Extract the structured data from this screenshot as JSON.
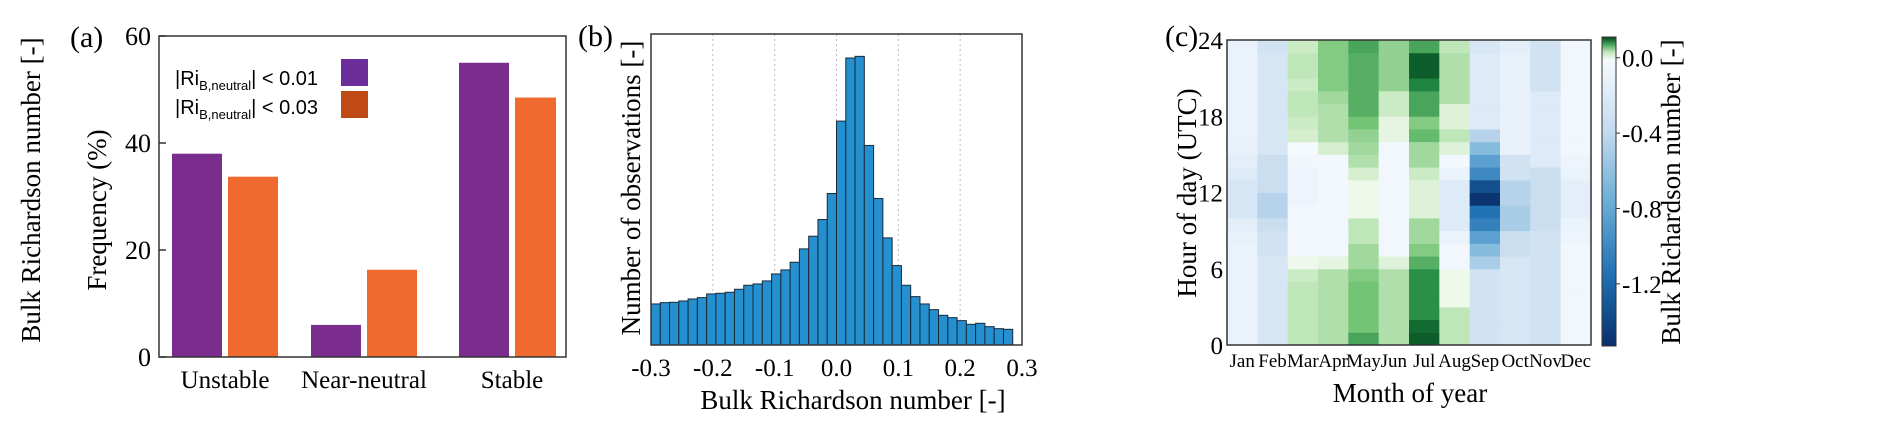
{
  "stray_label": "Bulk Richardson number [-]",
  "chart_data": [
    {
      "panel": "(a)",
      "type": "bar",
      "categories": [
        "Unstable",
        "Near-neutral",
        "Stable"
      ],
      "series": [
        {
          "name": "|Ri",
          "sub": "B,neutral",
          "suffix": "| < 0.01",
          "color": "#7b2d8e",
          "legend_color": "#6a2d9a",
          "values": [
            38,
            6,
            55
          ]
        },
        {
          "name": "|Ri",
          "sub": "B,neutral",
          "suffix": "| < 0.03",
          "color": "#f06a30",
          "legend_color": "#c04a15",
          "values": [
            33.7,
            16.3,
            48.5
          ]
        }
      ],
      "ylabel": "Frequency (%)",
      "xlabel": "",
      "ylim": [
        0,
        60
      ],
      "yticks": [
        "0",
        "20",
        "40",
        "60"
      ],
      "legend_position": "top-left"
    },
    {
      "panel": "(b)",
      "type": "bar",
      "subtype": "histogram",
      "bin_start": -0.3,
      "bin_width": 0.015,
      "values": [
        123,
        127,
        128,
        132,
        138,
        142,
        153,
        155,
        158,
        167,
        179,
        183,
        192,
        213,
        225,
        248,
        288,
        326,
        376,
        454,
        671,
        860,
        865,
        598,
        439,
        321,
        238,
        179,
        145,
        123,
        106,
        89,
        82,
        73,
        62,
        65,
        55,
        49,
        47
      ],
      "xlim": [
        -0.3,
        0.3
      ],
      "ylim": [
        0,
        932
      ],
      "xticks": [
        "-0.3",
        "-0.2",
        "-0.1",
        "0.0",
        "0.1",
        "0.2",
        "0.3"
      ],
      "xlabel": "Bulk Richardson number [-]",
      "ylabel": "Number of observations [-]",
      "color": "#2490d0",
      "grid": "vertical dotted"
    },
    {
      "panel": "(c)",
      "type": "heatmap",
      "xlabel": "Month of year",
      "ylabel": "Hour of day (UTC)",
      "months": [
        "Jan",
        "Feb",
        "Mar",
        "Apr",
        "May",
        "Jun",
        "Jul",
        "Aug",
        "Sep",
        "Oct",
        "Nov",
        "Dec"
      ],
      "yticks": [
        "0",
        "6",
        "12",
        "18",
        "24"
      ],
      "colorbar_label": "Bulk Richardson number [-]",
      "colorbar_ticks": [
        "0.0",
        "-0.4",
        "-0.8",
        "-1.2"
      ],
      "colorbar_range": [
        -1.53,
        0.11
      ],
      "values_by_month_hour": [
        [
          -0.1,
          -0.1,
          -0.1,
          -0.1,
          -0.1,
          -0.1,
          -0.1,
          -0.1,
          -0.12,
          -0.15,
          -0.25,
          -0.25,
          -0.25,
          -0.2,
          -0.15,
          -0.12,
          -0.1,
          -0.1,
          -0.1,
          -0.1,
          -0.1,
          -0.1,
          -0.1,
          -0.1
        ],
        [
          -0.25,
          -0.25,
          -0.25,
          -0.25,
          -0.25,
          -0.25,
          -0.25,
          -0.3,
          -0.3,
          -0.35,
          -0.45,
          -0.45,
          -0.35,
          -0.35,
          -0.35,
          -0.25,
          -0.25,
          -0.25,
          -0.25,
          -0.25,
          -0.25,
          -0.25,
          -0.25,
          -0.3
        ],
        [
          0.03,
          0.03,
          0.03,
          0.03,
          0.03,
          0.025,
          0.005,
          -0.05,
          -0.05,
          -0.05,
          -0.05,
          -0.08,
          -0.08,
          -0.08,
          -0.05,
          -0.02,
          0.02,
          0.025,
          0.03,
          0.03,
          0.025,
          0.03,
          0.03,
          0.025
        ],
        [
          0.035,
          0.035,
          0.035,
          0.035,
          0.035,
          0.035,
          0.01,
          -0.05,
          -0.05,
          -0.05,
          -0.05,
          -0.05,
          -0.05,
          -0.05,
          -0.04,
          0.02,
          0.035,
          0.035,
          0.035,
          0.04,
          0.05,
          0.05,
          0.05,
          0.05
        ],
        [
          0.07,
          0.055,
          0.055,
          0.055,
          0.055,
          0.05,
          0.04,
          0.04,
          0.03,
          0.03,
          0.005,
          0.005,
          0.005,
          0.02,
          0.035,
          0.04,
          0.045,
          0.055,
          0.065,
          0.065,
          0.065,
          0.065,
          0.065,
          0.07
        ],
        [
          0.035,
          0.035,
          0.035,
          0.035,
          0.035,
          0.035,
          0.015,
          -0.05,
          -0.05,
          -0.05,
          -0.05,
          -0.05,
          -0.05,
          -0.05,
          -0.05,
          -0.05,
          0.01,
          0.01,
          0.025,
          0.025,
          0.045,
          0.045,
          0.045,
          0.045
        ],
        [
          0.1,
          0.095,
          0.08,
          0.08,
          0.08,
          0.08,
          0.065,
          0.05,
          0.04,
          0.04,
          0.015,
          0.015,
          0.015,
          0.025,
          0.04,
          0.04,
          0.06,
          0.05,
          0.07,
          0.07,
          0.085,
          0.1,
          0.1,
          0.07
        ],
        [
          0.03,
          0.03,
          0.03,
          0.005,
          0.005,
          0.005,
          -0.05,
          -0.05,
          -0.1,
          -0.2,
          -0.2,
          -0.2,
          -0.2,
          -0.1,
          -0.03,
          0.015,
          0.03,
          0.015,
          0.015,
          0.035,
          0.035,
          0.035,
          0.035,
          0.03
        ],
        [
          -0.3,
          -0.3,
          -0.3,
          -0.3,
          -0.3,
          -0.3,
          -0.5,
          -0.65,
          -0.85,
          -1.05,
          -1.15,
          -1.5,
          -1.35,
          -1.0,
          -0.85,
          -0.65,
          -0.45,
          -0.2,
          -0.2,
          -0.2,
          -0.2,
          -0.2,
          -0.2,
          -0.25
        ],
        [
          -0.25,
          -0.25,
          -0.25,
          -0.25,
          -0.25,
          -0.25,
          -0.25,
          -0.35,
          -0.35,
          -0.5,
          -0.5,
          -0.45,
          -0.45,
          -0.3,
          -0.3,
          -0.12,
          -0.12,
          -0.12,
          -0.12,
          -0.12,
          -0.12,
          -0.12,
          -0.12,
          -0.15
        ],
        [
          -0.3,
          -0.3,
          -0.3,
          -0.3,
          -0.3,
          -0.3,
          -0.3,
          -0.3,
          -0.3,
          -0.35,
          -0.35,
          -0.35,
          -0.35,
          -0.35,
          -0.2,
          -0.2,
          -0.2,
          -0.2,
          -0.2,
          -0.2,
          -0.3,
          -0.3,
          -0.3,
          -0.3
        ],
        [
          -0.05,
          -0.05,
          -0.05,
          -0.05,
          -0.05,
          -0.05,
          -0.05,
          -0.05,
          -0.08,
          -0.1,
          -0.15,
          -0.15,
          -0.15,
          -0.1,
          -0.08,
          -0.05,
          -0.05,
          -0.05,
          -0.05,
          -0.05,
          -0.05,
          -0.05,
          -0.05,
          -0.05
        ]
      ]
    }
  ]
}
